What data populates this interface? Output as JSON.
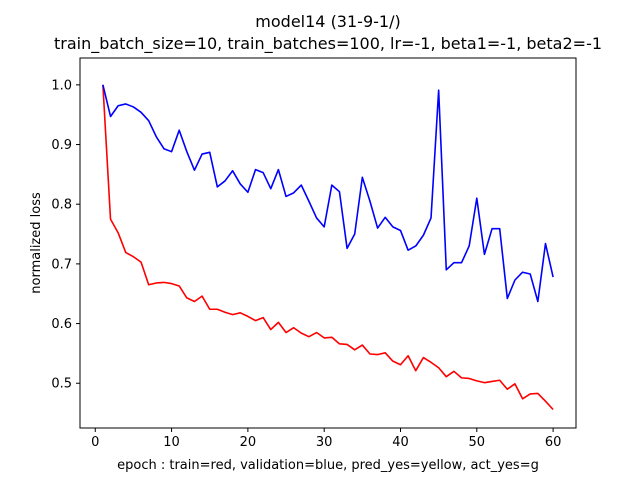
{
  "chart_data": {
    "type": "line",
    "title_line1": "model14 (31-9-1/)",
    "title_line2": "train_batch_size=10, train_batches=100, lr=-1, beta1=-1, beta2=-1",
    "xlabel": "epoch : train=red, validation=blue, pred_yes=yellow, act_yes=g",
    "ylabel": "normalized loss",
    "xlim": [
      -2.0,
      63.0
    ],
    "ylim": [
      0.425,
      1.045
    ],
    "xticks": [
      0,
      10,
      20,
      30,
      40,
      50,
      60
    ],
    "yticks": [
      0.5,
      0.6,
      0.7,
      0.8,
      0.9,
      1.0
    ],
    "ytick_labels": [
      "0.5",
      "0.6",
      "0.7",
      "0.8",
      "0.9",
      "1.0"
    ],
    "grid": false,
    "series": [
      {
        "color": "#ff0000",
        "x": [
          1,
          2,
          3,
          4,
          5,
          6,
          7,
          8,
          9,
          10,
          11,
          12,
          13,
          14,
          15,
          16,
          17,
          18,
          19,
          20,
          21,
          22,
          23,
          24,
          25,
          26,
          27,
          28,
          29,
          30,
          31,
          32,
          33,
          34,
          35,
          36,
          37,
          38,
          39,
          40,
          41,
          42,
          43,
          44,
          45,
          46,
          47,
          48,
          49,
          50,
          51,
          52,
          53,
          54,
          55,
          56,
          57,
          58,
          59,
          60
        ],
        "values": [
          1.0,
          0.775,
          0.752,
          0.719,
          0.712,
          0.703,
          0.665,
          0.668,
          0.669,
          0.667,
          0.663,
          0.643,
          0.637,
          0.646,
          0.624,
          0.624,
          0.619,
          0.615,
          0.618,
          0.612,
          0.605,
          0.61,
          0.59,
          0.602,
          0.585,
          0.593,
          0.584,
          0.578,
          0.585,
          0.576,
          0.577,
          0.566,
          0.565,
          0.556,
          0.564,
          0.549,
          0.548,
          0.551,
          0.537,
          0.531,
          0.546,
          0.521,
          0.543,
          0.535,
          0.526,
          0.511,
          0.52,
          0.509,
          0.508,
          0.504,
          0.501,
          0.503,
          0.505,
          0.49,
          0.499,
          0.474,
          0.482,
          0.483,
          0.47,
          0.456
        ]
      },
      {
        "color": "#0000ff",
        "x": [
          1,
          2,
          3,
          4,
          5,
          6,
          7,
          8,
          9,
          10,
          11,
          12,
          13,
          14,
          15,
          16,
          17,
          18,
          19,
          20,
          21,
          22,
          23,
          24,
          25,
          26,
          27,
          28,
          29,
          30,
          31,
          32,
          33,
          34,
          35,
          36,
          37,
          38,
          39,
          40,
          41,
          42,
          43,
          44,
          45,
          46,
          47,
          48,
          49,
          50,
          51,
          52,
          53,
          54,
          55,
          56,
          57,
          58,
          59,
          60
        ],
        "values": [
          1.0,
          0.947,
          0.965,
          0.968,
          0.963,
          0.954,
          0.94,
          0.913,
          0.893,
          0.888,
          0.924,
          0.888,
          0.857,
          0.884,
          0.887,
          0.829,
          0.839,
          0.856,
          0.834,
          0.82,
          0.858,
          0.853,
          0.826,
          0.858,
          0.813,
          0.819,
          0.832,
          0.805,
          0.777,
          0.762,
          0.832,
          0.821,
          0.726,
          0.75,
          0.845,
          0.805,
          0.76,
          0.778,
          0.762,
          0.756,
          0.723,
          0.73,
          0.748,
          0.777,
          0.991,
          0.69,
          0.702,
          0.702,
          0.73,
          0.81,
          0.716,
          0.759,
          0.759,
          0.642,
          0.673,
          0.686,
          0.683,
          0.637,
          0.734,
          0.678
        ]
      }
    ]
  }
}
